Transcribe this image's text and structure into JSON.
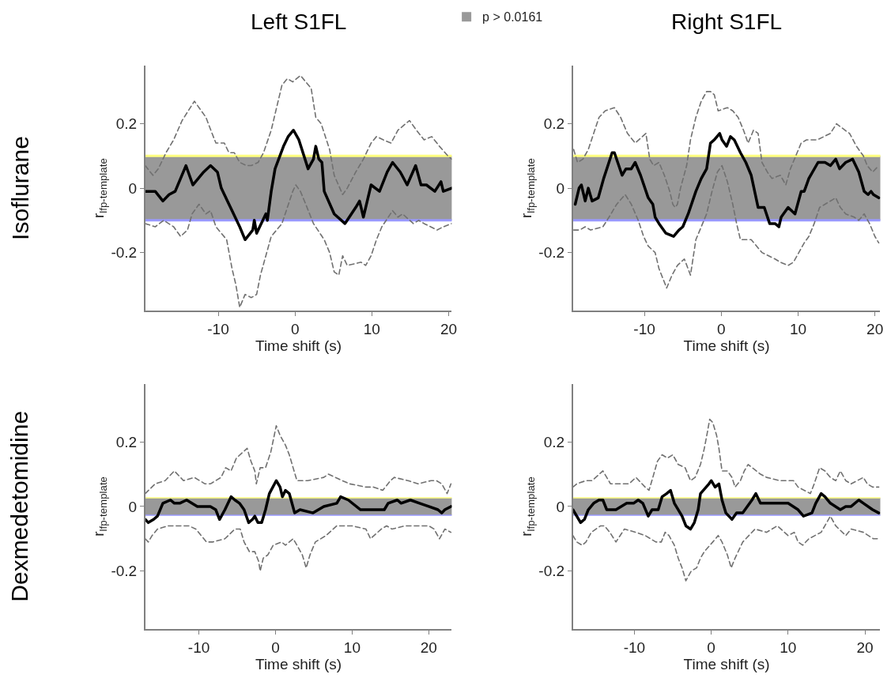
{
  "chart_data": [
    {
      "type": "line",
      "title": "Left S1FL",
      "xlabel": "Time shift (s)",
      "ylabel": "r$_{lfp-template}$",
      "annotations": [
        "Isoflurane"
      ],
      "xlim": [
        -19.5,
        20.4
      ],
      "xticks": [
        -10,
        0,
        10,
        20
      ],
      "ylim": [
        -0.38,
        0.38
      ],
      "yticks": [
        -0.2,
        0,
        0.2
      ],
      "grid": false,
      "legend": "top",
      "bands": [
        {
          "axis": "y",
          "from": -0.1,
          "to": 0.1,
          "label": "p > 0.0161",
          "color": "#999999"
        }
      ],
      "ref_lines": [
        {
          "axis": "y",
          "value": 0.1,
          "color": "#ffff80"
        },
        {
          "axis": "y",
          "value": -0.1,
          "color": "#9999ff"
        }
      ],
      "series": [
        {
          "color": "#000000",
          "line_style": "solid",
          "x": [
            -19.5,
            -18.2,
            -17.2,
            -16.4,
            -15.6,
            -14.2,
            -13.9,
            -13.3,
            -11.9,
            -11.0,
            -10.1,
            -9.6,
            -8.4,
            -7.2,
            -6.5,
            -5.5,
            -5.3,
            -5.0,
            -3.8,
            -3.6,
            -3.1,
            -2.6,
            -1.5,
            -0.9,
            -0.2,
            0.5,
            1.7,
            2.4,
            2.7,
            3.1,
            3.5,
            3.8,
            5.1,
            6.5,
            7.9,
            8.4,
            8.9,
            9.9,
            11.0,
            12.0,
            12.7,
            13.7,
            14.6,
            15.7,
            16.4,
            17.1,
            18.2,
            19.0,
            19.3,
            20.4
          ],
          "values": [
            -0.01,
            -0.01,
            -0.04,
            -0.02,
            -0.01,
            0.07,
            0.05,
            0.01,
            0.05,
            0.07,
            0.05,
            0.0,
            -0.06,
            -0.12,
            -0.16,
            -0.13,
            -0.1,
            -0.14,
            -0.08,
            -0.1,
            -0.01,
            0.06,
            0.13,
            0.16,
            0.18,
            0.15,
            0.06,
            0.09,
            0.13,
            0.09,
            0.08,
            -0.01,
            -0.08,
            -0.11,
            -0.06,
            -0.04,
            -0.09,
            0.01,
            -0.01,
            0.05,
            0.08,
            0.05,
            0.01,
            0.07,
            0.01,
            0.01,
            -0.01,
            0.02,
            -0.01,
            0.0
          ]
        },
        {
          "color": "#707070",
          "line_style": "dashed",
          "x": [
            -19.5,
            -18.5,
            -17.8,
            -16.8,
            -15.8,
            -14.7,
            -13.1,
            -11.6,
            -10.8,
            -10.3,
            -9.2,
            -8.6,
            -7.9,
            -7.2,
            -6.3,
            -5.7,
            -4.8,
            -4.1,
            -3.1,
            -2.4,
            -1.7,
            -1.0,
            -0.3,
            0.7,
            1.4,
            2.1,
            2.7,
            3.4,
            4.5,
            5.1,
            6.2,
            6.8,
            7.9,
            8.9,
            9.9,
            10.6,
            11.5,
            12.5,
            13.4,
            14.9,
            15.8,
            16.8,
            17.8,
            18.8,
            19.9,
            20.4
          ],
          "values": [
            0.07,
            0.04,
            0.06,
            0.11,
            0.15,
            0.21,
            0.27,
            0.22,
            0.17,
            0.14,
            0.14,
            0.11,
            0.11,
            0.08,
            0.07,
            0.07,
            0.08,
            0.11,
            0.18,
            0.25,
            0.32,
            0.34,
            0.33,
            0.35,
            0.33,
            0.31,
            0.22,
            0.2,
            0.12,
            0.04,
            -0.02,
            0.0,
            0.05,
            0.09,
            0.14,
            0.16,
            0.15,
            0.14,
            0.18,
            0.21,
            0.18,
            0.15,
            0.16,
            0.13,
            0.1,
            0.09
          ]
        },
        {
          "color": "#707070",
          "line_style": "dashed",
          "x": [
            -19.5,
            -18.2,
            -17.1,
            -15.8,
            -14.9,
            -14.0,
            -13.4,
            -12.5,
            -11.6,
            -11.0,
            -10.3,
            -9.6,
            -8.9,
            -8.2,
            -7.7,
            -7.2,
            -6.5,
            -5.7,
            -5.0,
            -4.5,
            -3.8,
            -3.1,
            -1.7,
            -1.0,
            -0.3,
            0.1,
            0.7,
            1.4,
            2.4,
            3.8,
            4.5,
            5.1,
            5.7,
            6.2,
            6.8,
            8.6,
            9.2,
            9.9,
            10.6,
            11.3,
            12.7,
            13.4,
            14.0,
            15.4,
            16.1,
            16.8,
            18.5,
            19.3,
            20.4
          ],
          "values": [
            -0.11,
            -0.12,
            -0.1,
            -0.12,
            -0.15,
            -0.13,
            -0.08,
            -0.05,
            -0.08,
            -0.07,
            -0.12,
            -0.14,
            -0.16,
            -0.25,
            -0.3,
            -0.37,
            -0.33,
            -0.34,
            -0.33,
            -0.27,
            -0.21,
            -0.15,
            -0.11,
            -0.06,
            -0.01,
            0.01,
            -0.01,
            -0.05,
            -0.11,
            -0.16,
            -0.2,
            -0.26,
            -0.27,
            -0.21,
            -0.24,
            -0.23,
            -0.24,
            -0.21,
            -0.16,
            -0.12,
            -0.07,
            -0.09,
            -0.08,
            -0.11,
            -0.1,
            -0.11,
            -0.13,
            -0.12,
            -0.11
          ]
        }
      ]
    },
    {
      "type": "line",
      "title": "Right S1FL",
      "xlabel": "Time shift (s)",
      "ylabel": "r$_{lfp-template}$",
      "xlim": [
        -19.3,
        20.7
      ],
      "xticks": [
        -10,
        0,
        10,
        20
      ],
      "ylim": [
        -0.38,
        0.38
      ],
      "yticks": [
        -0.2,
        0,
        0.2
      ],
      "grid": false,
      "bands": [
        {
          "axis": "y",
          "from": -0.1,
          "to": 0.1,
          "color": "#999999"
        }
      ],
      "ref_lines": [
        {
          "axis": "y",
          "value": 0.1,
          "color": "#ffff80"
        },
        {
          "axis": "y",
          "value": -0.1,
          "color": "#9999ff"
        }
      ],
      "series": [
        {
          "color": "#000000",
          "line_style": "solid",
          "x": [
            -19.0,
            -18.5,
            -18.2,
            -17.7,
            -17.3,
            -16.8,
            -16.0,
            -15.3,
            -14.2,
            -13.9,
            -12.9,
            -12.4,
            -11.7,
            -11.2,
            -10.5,
            -9.5,
            -8.9,
            -8.6,
            -8.1,
            -7.2,
            -6.2,
            -5.5,
            -5.0,
            -4.3,
            -3.3,
            -2.6,
            -1.9,
            -1.4,
            -0.9,
            -0.2,
            0.1,
            0.7,
            1.2,
            1.7,
            2.5,
            3.2,
            3.9,
            4.8,
            5.6,
            6.3,
            7.0,
            7.5,
            7.8,
            8.7,
            9.6,
            10.4,
            10.8,
            11.4,
            12.6,
            13.5,
            14.2,
            14.9,
            15.4,
            16.2,
            17.1,
            17.9,
            18.6,
            19.1,
            19.5,
            19.8,
            20.5
          ],
          "values": [
            -0.05,
            0.0,
            0.01,
            -0.04,
            0.0,
            -0.04,
            -0.03,
            0.03,
            0.11,
            0.11,
            0.04,
            0.06,
            0.06,
            0.08,
            0.04,
            -0.03,
            -0.05,
            -0.09,
            -0.11,
            -0.14,
            -0.15,
            -0.13,
            -0.12,
            -0.08,
            -0.01,
            0.03,
            0.06,
            0.14,
            0.15,
            0.17,
            0.15,
            0.13,
            0.16,
            0.15,
            0.11,
            0.08,
            0.04,
            -0.06,
            -0.06,
            -0.11,
            -0.11,
            -0.12,
            -0.09,
            -0.06,
            -0.08,
            -0.01,
            -0.01,
            0.03,
            0.08,
            0.08,
            0.07,
            0.09,
            0.06,
            0.08,
            0.09,
            0.05,
            -0.01,
            -0.02,
            -0.01,
            -0.02,
            -0.03
          ]
        },
        {
          "color": "#707070",
          "line_style": "dashed",
          "x": [
            -19.2,
            -18.7,
            -18.0,
            -17.3,
            -16.6,
            -15.9,
            -15.1,
            -13.9,
            -13.1,
            -12.2,
            -11.2,
            -9.8,
            -9.3,
            -8.8,
            -8.1,
            -7.4,
            -6.7,
            -6.3,
            -6.0,
            -5.7,
            -5.3,
            -4.5,
            -4.0,
            -3.3,
            -2.6,
            -1.9,
            -1.4,
            -0.9,
            -0.4,
            0.8,
            1.5,
            2.2,
            2.9,
            3.5,
            4.2,
            4.8,
            5.3,
            6.0,
            6.6,
            7.7,
            8.4,
            9.0,
            9.7,
            10.4,
            11.1,
            12.5,
            14.2,
            15.0,
            16.1,
            16.7,
            17.6,
            18.5,
            19.0,
            19.7,
            20.5
          ],
          "values": [
            0.12,
            0.08,
            0.09,
            0.12,
            0.17,
            0.22,
            0.24,
            0.25,
            0.22,
            0.17,
            0.14,
            0.17,
            0.09,
            0.07,
            0.08,
            0.04,
            -0.01,
            -0.05,
            -0.06,
            -0.05,
            0.0,
            0.07,
            0.15,
            0.22,
            0.27,
            0.3,
            0.3,
            0.29,
            0.24,
            0.25,
            0.24,
            0.22,
            0.18,
            0.14,
            0.18,
            0.17,
            0.08,
            0.05,
            0.03,
            0.04,
            0.01,
            0.06,
            0.1,
            0.14,
            0.15,
            0.15,
            0.17,
            0.2,
            0.18,
            0.17,
            0.13,
            0.1,
            0.07,
            0.05,
            0.07
          ]
        },
        {
          "color": "#707070",
          "line_style": "dashed",
          "x": [
            -19.2,
            -18.4,
            -17.7,
            -17.0,
            -15.4,
            -14.6,
            -13.6,
            -12.5,
            -11.7,
            -10.8,
            -10.1,
            -9.5,
            -8.6,
            -8.1,
            -7.6,
            -7.1,
            -6.4,
            -5.7,
            -4.8,
            -4.0,
            -3.3,
            -2.6,
            -1.9,
            -1.2,
            -0.5,
            0.1,
            0.8,
            1.5,
            2.0,
            2.5,
            3.9,
            5.3,
            7.0,
            7.7,
            8.7,
            9.4,
            10.1,
            10.8,
            11.4,
            12.1,
            12.8,
            13.5,
            14.9,
            15.5,
            16.2,
            17.3,
            17.9,
            18.6,
            19.3,
            20.0,
            20.5
          ],
          "values": [
            -0.13,
            -0.13,
            -0.12,
            -0.13,
            -0.12,
            -0.09,
            -0.05,
            -0.02,
            -0.05,
            -0.1,
            -0.15,
            -0.18,
            -0.2,
            -0.25,
            -0.28,
            -0.31,
            -0.27,
            -0.24,
            -0.22,
            -0.27,
            -0.16,
            -0.12,
            -0.08,
            -0.01,
            0.05,
            0.07,
            0.02,
            -0.05,
            -0.11,
            -0.16,
            -0.16,
            -0.2,
            -0.22,
            -0.23,
            -0.24,
            -0.23,
            -0.2,
            -0.17,
            -0.15,
            -0.11,
            -0.06,
            -0.05,
            -0.03,
            -0.06,
            -0.08,
            -0.09,
            -0.1,
            -0.08,
            -0.11,
            -0.15,
            -0.17
          ]
        }
      ]
    },
    {
      "type": "line",
      "xlabel": "Time shift (s)",
      "ylabel": "r$_{lfp-template}$",
      "annotations": [
        "Dexmedetomidine"
      ],
      "xlim": [
        -17.0,
        23.0
      ],
      "xticks": [
        -10,
        0,
        10,
        20
      ],
      "ylim": [
        -0.38,
        0.38
      ],
      "yticks": [
        -0.2,
        0,
        0.2
      ],
      "grid": false,
      "bands": [
        {
          "axis": "y",
          "from": -0.027,
          "to": 0.027,
          "color": "#999999"
        }
      ],
      "ref_lines": [
        {
          "axis": "y",
          "value": 0.027,
          "color": "#ffff80"
        },
        {
          "axis": "y",
          "value": -0.027,
          "color": "#9999ff"
        }
      ],
      "series": [
        {
          "color": "#000000",
          "line_style": "solid",
          "x": [
            -17.0,
            -16.6,
            -15.9,
            -15.4,
            -14.7,
            -13.7,
            -13.2,
            -12.5,
            -11.6,
            -10.2,
            -9.2,
            -8.5,
            -7.8,
            -7.3,
            -6.6,
            -5.8,
            -5.3,
            -4.7,
            -4.1,
            -3.5,
            -3.0,
            -2.7,
            -2.3,
            -1.8,
            -1.3,
            -0.8,
            0.1,
            0.6,
            0.9,
            1.3,
            1.8,
            2.5,
            3.2,
            4.9,
            6.3,
            8.0,
            8.5,
            9.5,
            11.1,
            11.8,
            14.2,
            14.7,
            15.9,
            16.4,
            17.6,
            18.8,
            20.0,
            21.2,
            21.7,
            22.1,
            22.9
          ],
          "values": [
            -0.04,
            -0.05,
            -0.04,
            -0.03,
            0.01,
            0.02,
            0.01,
            0.01,
            0.02,
            0.0,
            0.0,
            0.0,
            -0.01,
            -0.04,
            -0.01,
            0.03,
            0.02,
            0.01,
            -0.01,
            -0.05,
            -0.04,
            -0.03,
            -0.05,
            -0.05,
            -0.01,
            0.04,
            0.08,
            0.06,
            0.03,
            0.05,
            0.04,
            -0.02,
            -0.01,
            -0.02,
            0.0,
            0.01,
            0.03,
            0.02,
            -0.01,
            -0.01,
            -0.01,
            0.01,
            0.02,
            0.01,
            0.02,
            0.01,
            0.0,
            -0.01,
            -0.02,
            -0.01,
            0.0
          ]
        },
        {
          "color": "#707070",
          "line_style": "dashed",
          "x": [
            -17.0,
            -15.7,
            -14.4,
            -13.2,
            -12.0,
            -10.6,
            -9.2,
            -8.5,
            -7.8,
            -7.1,
            -6.5,
            -5.8,
            -5.1,
            -3.7,
            -3.2,
            -2.7,
            -2.5,
            -2.0,
            -1.3,
            -0.6,
            0.1,
            0.6,
            1.3,
            1.8,
            2.3,
            2.8,
            4.2,
            6.3,
            6.9,
            8.7,
            9.7,
            11.8,
            12.8,
            14.0,
            15.0,
            15.5,
            17.3,
            18.6,
            20.3,
            21.0,
            21.7,
            22.4,
            22.9
          ],
          "values": [
            0.04,
            0.07,
            0.08,
            0.11,
            0.08,
            0.09,
            0.07,
            0.07,
            0.08,
            0.09,
            0.12,
            0.11,
            0.15,
            0.18,
            0.14,
            0.11,
            0.07,
            0.12,
            0.12,
            0.17,
            0.25,
            0.22,
            0.19,
            0.16,
            0.12,
            0.08,
            0.08,
            0.09,
            0.1,
            0.08,
            0.07,
            0.06,
            0.06,
            0.05,
            0.08,
            0.09,
            0.08,
            0.07,
            0.08,
            0.08,
            0.07,
            0.04,
            0.07
          ]
        },
        {
          "color": "#707070",
          "line_style": "dashed",
          "x": [
            -17.0,
            -16.6,
            -16.1,
            -15.4,
            -14.0,
            -12.6,
            -11.3,
            -10.4,
            -9.0,
            -8.2,
            -6.6,
            -5.3,
            -4.6,
            -4.1,
            -3.4,
            -2.7,
            -2.2,
            -2.0,
            -1.6,
            -1.0,
            -0.3,
            0.8,
            1.3,
            1.8,
            2.3,
            2.8,
            3.5,
            4.0,
            4.5,
            5.2,
            6.6,
            8.0,
            9.0,
            10.0,
            11.8,
            12.4,
            13.8,
            14.5,
            15.2,
            16.9,
            17.9,
            19.0,
            20.0,
            20.7,
            21.4,
            22.1,
            22.9
          ],
          "values": [
            -0.1,
            -0.11,
            -0.09,
            -0.07,
            -0.06,
            -0.06,
            -0.06,
            -0.07,
            -0.11,
            -0.11,
            -0.1,
            -0.07,
            -0.07,
            -0.11,
            -0.14,
            -0.14,
            -0.17,
            -0.2,
            -0.16,
            -0.15,
            -0.12,
            -0.11,
            -0.12,
            -0.11,
            -0.1,
            -0.12,
            -0.15,
            -0.19,
            -0.15,
            -0.11,
            -0.09,
            -0.06,
            -0.06,
            -0.06,
            -0.07,
            -0.1,
            -0.07,
            -0.06,
            -0.07,
            -0.06,
            -0.06,
            -0.06,
            -0.06,
            -0.07,
            -0.1,
            -0.07,
            -0.08
          ]
        }
      ]
    },
    {
      "type": "line",
      "xlabel": "Time shift (s)",
      "ylabel": "r$_{lfp-template}$",
      "xlim": [
        -18.0,
        22.0
      ],
      "xticks": [
        -10,
        0,
        10,
        20
      ],
      "ylim": [
        -0.38,
        0.38
      ],
      "yticks": [
        -0.2,
        0,
        0.2
      ],
      "grid": false,
      "bands": [
        {
          "axis": "y",
          "from": -0.027,
          "to": 0.027,
          "color": "#999999"
        }
      ],
      "ref_lines": [
        {
          "axis": "y",
          "value": 0.027,
          "color": "#ffff80"
        },
        {
          "axis": "y",
          "value": -0.027,
          "color": "#9999ff"
        }
      ],
      "series": [
        {
          "color": "#000000",
          "line_style": "solid",
          "x": [
            -18.0,
            -17.5,
            -17.0,
            -16.5,
            -16.0,
            -15.3,
            -14.6,
            -14.1,
            -13.6,
            -12.4,
            -11.0,
            -10.1,
            -9.5,
            -8.9,
            -8.2,
            -7.7,
            -6.9,
            -6.4,
            -5.8,
            -5.3,
            -4.8,
            -3.8,
            -3.3,
            -2.7,
            -2.2,
            -1.7,
            -1.4,
            -0.3,
            0.0,
            0.5,
            1.0,
            1.4,
            1.9,
            2.7,
            3.3,
            4.1,
            5.3,
            5.8,
            6.4,
            7.9,
            8.9,
            10.0,
            11.3,
            12.0,
            13.1,
            13.6,
            14.3,
            14.8,
            15.5,
            16.8,
            17.5,
            18.2,
            19.2,
            19.8,
            21.0,
            21.8
          ],
          "values": [
            -0.01,
            -0.03,
            -0.05,
            -0.04,
            -0.01,
            0.01,
            0.02,
            0.02,
            -0.01,
            -0.01,
            0.01,
            0.01,
            0.02,
            0.01,
            -0.03,
            -0.01,
            -0.01,
            0.03,
            0.04,
            0.05,
            0.01,
            -0.03,
            -0.06,
            -0.07,
            -0.05,
            -0.01,
            0.04,
            0.07,
            0.08,
            0.06,
            0.07,
            0.02,
            -0.02,
            -0.04,
            -0.02,
            -0.02,
            0.02,
            0.04,
            0.01,
            0.01,
            0.01,
            0.01,
            -0.01,
            -0.03,
            -0.02,
            0.01,
            0.04,
            0.03,
            0.01,
            -0.01,
            0.0,
            0.0,
            0.02,
            0.01,
            -0.01,
            -0.02
          ]
        },
        {
          "color": "#707070",
          "line_style": "dashed",
          "x": [
            -18.0,
            -17.5,
            -16.3,
            -15.5,
            -14.1,
            -13.6,
            -13.1,
            -11.5,
            -10.7,
            -9.8,
            -8.6,
            -8.1,
            -7.6,
            -7.0,
            -6.4,
            -5.7,
            -5.0,
            -4.3,
            -3.4,
            -2.7,
            -2.1,
            -1.4,
            -0.9,
            -0.5,
            -0.2,
            0.2,
            0.7,
            1.0,
            1.4,
            2.1,
            2.7,
            3.1,
            3.8,
            4.3,
            4.8,
            6.4,
            7.2,
            8.9,
            10.7,
            11.3,
            12.9,
            13.4,
            14.1,
            14.8,
            15.5,
            16.2,
            16.8,
            17.5,
            18.2,
            19.8,
            20.3,
            21.0,
            21.8
          ],
          "values": [
            0.06,
            0.07,
            0.08,
            0.08,
            0.11,
            0.09,
            0.07,
            0.07,
            0.07,
            0.09,
            0.06,
            0.05,
            0.09,
            0.14,
            0.16,
            0.15,
            0.16,
            0.13,
            0.12,
            0.08,
            0.09,
            0.13,
            0.18,
            0.23,
            0.27,
            0.26,
            0.22,
            0.18,
            0.11,
            0.11,
            0.09,
            0.06,
            0.08,
            0.11,
            0.13,
            0.1,
            0.09,
            0.08,
            0.08,
            0.06,
            0.04,
            0.07,
            0.12,
            0.11,
            0.09,
            0.08,
            0.11,
            0.08,
            0.07,
            0.09,
            0.07,
            0.06,
            0.06
          ]
        },
        {
          "color": "#707070",
          "line_style": "dashed",
          "x": [
            -18.0,
            -17.5,
            -16.8,
            -16.3,
            -15.6,
            -14.4,
            -13.9,
            -13.2,
            -12.4,
            -11.3,
            -9.8,
            -8.6,
            -7.2,
            -6.5,
            -6.0,
            -5.5,
            -4.8,
            -4.3,
            -3.8,
            -3.3,
            -2.6,
            -1.9,
            -1.4,
            -0.9,
            0.2,
            0.9,
            1.4,
            2.1,
            2.6,
            3.1,
            4.1,
            5.7,
            7.2,
            8.6,
            10.0,
            10.8,
            11.3,
            11.9,
            12.7,
            14.3,
            15.5,
            16.2,
            17.5,
            18.2,
            19.8,
            21.1,
            21.8
          ],
          "values": [
            -0.09,
            -0.11,
            -0.12,
            -0.11,
            -0.08,
            -0.06,
            -0.06,
            -0.08,
            -0.11,
            -0.07,
            -0.08,
            -0.09,
            -0.11,
            -0.11,
            -0.08,
            -0.09,
            -0.12,
            -0.16,
            -0.19,
            -0.23,
            -0.2,
            -0.19,
            -0.16,
            -0.14,
            -0.11,
            -0.09,
            -0.11,
            -0.15,
            -0.19,
            -0.16,
            -0.11,
            -0.07,
            -0.08,
            -0.06,
            -0.09,
            -0.08,
            -0.11,
            -0.12,
            -0.1,
            -0.08,
            -0.03,
            -0.06,
            -0.09,
            -0.07,
            -0.08,
            -0.1,
            -0.1
          ]
        }
      ]
    }
  ]
}
